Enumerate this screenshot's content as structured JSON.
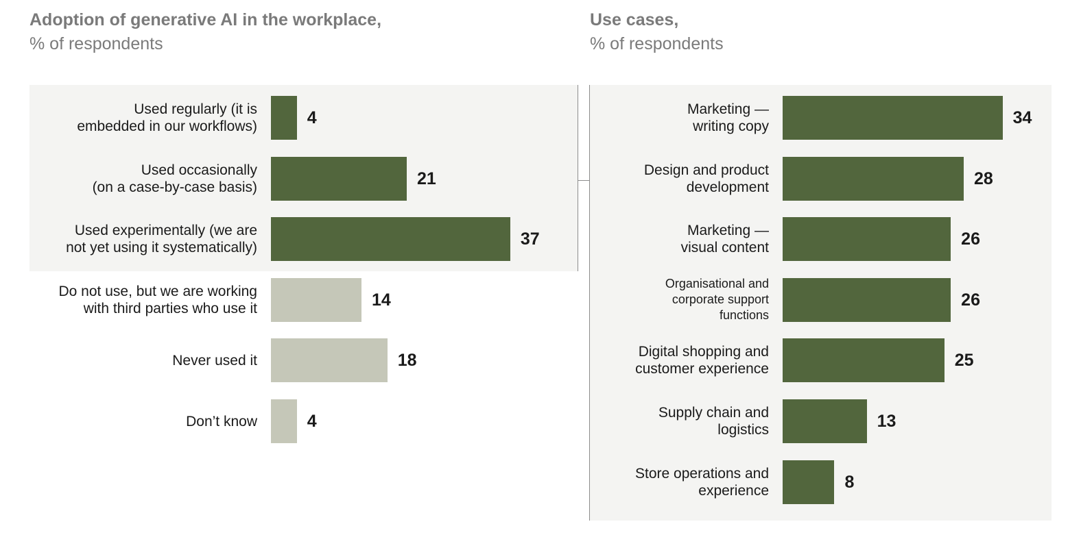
{
  "chart_data": [
    {
      "type": "bar",
      "orientation": "horizontal",
      "title": "Adoption of generative AI in the workplace,",
      "subtitle": "% of respondents",
      "categories": [
        "Used regularly (it is\nembedded in our workflows)",
        "Used occasionally\n(on a case-by-case basis)",
        "Used experimentally (we are\nnot yet using it systematically)",
        "Do not use, but we are working\nwith third parties who use it",
        "Never used it",
        "Don’t know"
      ],
      "values": [
        4,
        21,
        37,
        14,
        18,
        4
      ],
      "bar_colors": [
        "#52663d",
        "#52663d",
        "#52663d",
        "#c5c7b8",
        "#c5c7b8",
        "#c5c7b8"
      ],
      "highlighted_rows": 3,
      "xlim": [
        0,
        37
      ]
    },
    {
      "type": "bar",
      "orientation": "horizontal",
      "title": "Use cases,",
      "subtitle": "% of respondents",
      "categories": [
        "Marketing —\nwriting copy",
        "Design and product\ndevelopment",
        "Marketing —\nvisual content",
        "Organisational and\ncorporate support\nfunctions",
        "Digital shopping and\ncustomer experience",
        "Supply chain and\nlogistics",
        "Store operations and\nexperience"
      ],
      "values": [
        34,
        28,
        26,
        26,
        25,
        13,
        8
      ],
      "bar_colors": [
        "#52663d",
        "#52663d",
        "#52663d",
        "#52663d",
        "#52663d",
        "#52663d",
        "#52663d"
      ],
      "xlim": [
        0,
        34
      ]
    }
  ]
}
